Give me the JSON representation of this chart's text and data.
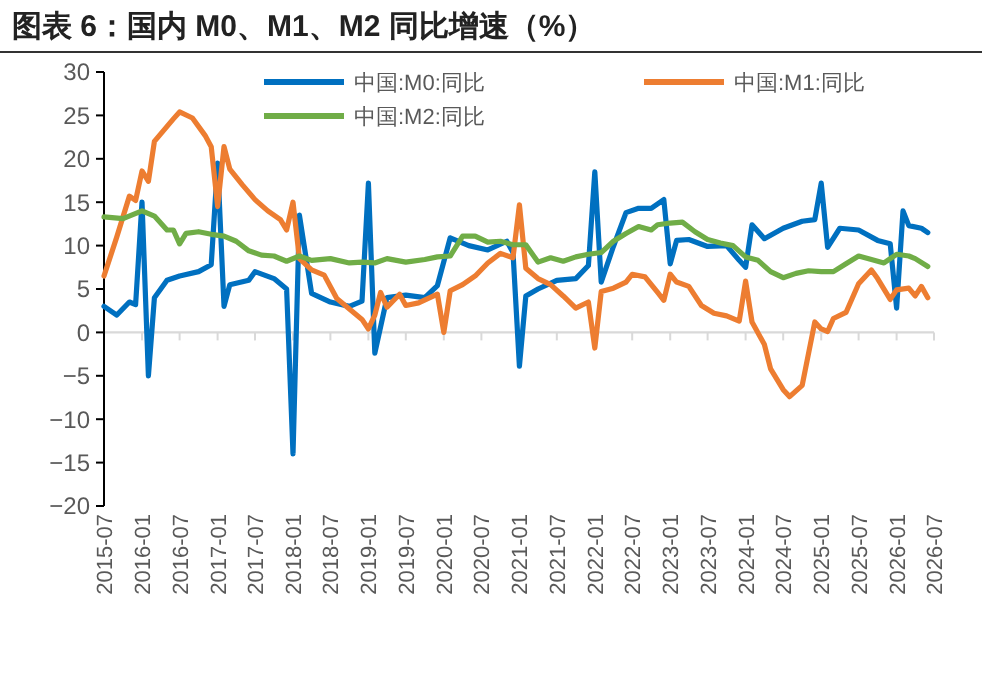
{
  "chart_data": {
    "type": "line",
    "title": "图表 6：国内 M0、M1、M2 同比增速（%）",
    "xlim": [
      "2015-07",
      "2026-07"
    ],
    "xticks": [
      "2015-07",
      "2016-01",
      "2016-07",
      "2017-01",
      "2017-07",
      "2018-01",
      "2018-07",
      "2019-01",
      "2019-07",
      "2020-01",
      "2020-07",
      "2021-01",
      "2021-07",
      "2022-01",
      "2022-07",
      "2023-01",
      "2023-07",
      "2024-01",
      "2024-07",
      "2025-01",
      "2025-07",
      "2026-01",
      "2026-07"
    ],
    "ylim": [
      -20,
      30
    ],
    "yticks": [
      {
        "value": -20,
        "label": "−20"
      },
      {
        "value": -15,
        "label": "−15"
      },
      {
        "value": -10,
        "label": "−10"
      },
      {
        "value": -5,
        "label": "−5"
      },
      0,
      5,
      10,
      15,
      20,
      25,
      30
    ],
    "legend": "top",
    "line_style": "solid",
    "marker": "none",
    "series": [
      {
        "name": "中国:M0:同比",
        "color": "#0070c0",
        "x": [
          "2015-07",
          "2015-09",
          "2015-11",
          "2015-12",
          "2016-01",
          "2016-02",
          "2016-03",
          "2016-05",
          "2016-07",
          "2016-10",
          "2016-12",
          "2017-01",
          "2017-02",
          "2017-03",
          "2017-06",
          "2017-07",
          "2017-10",
          "2017-12",
          "2018-01",
          "2018-02",
          "2018-04",
          "2018-07",
          "2018-10",
          "2018-12",
          "2019-01",
          "2019-02",
          "2019-04",
          "2019-07",
          "2019-10",
          "2019-12",
          "2020-02",
          "2020-05",
          "2020-08",
          "2020-11",
          "2020-12",
          "2021-01",
          "2021-02",
          "2021-04",
          "2021-07",
          "2021-10",
          "2021-12",
          "2022-01",
          "2022-02",
          "2022-04",
          "2022-06",
          "2022-08",
          "2022-10",
          "2022-12",
          "2023-01",
          "2023-02",
          "2023-04",
          "2023-07",
          "2023-10",
          "2023-12",
          "2024-01",
          "2024-02",
          "2024-04",
          "2024-07",
          "2024-10",
          "2024-12",
          "2025-01",
          "2025-02",
          "2025-04",
          "2025-07",
          "2025-10",
          "2025-12",
          "2026-01",
          "2026-02",
          "2026-03",
          "2026-05",
          "2026-06"
        ],
        "values": [
          3,
          2,
          3.5,
          3.2,
          15,
          -5,
          4,
          6,
          6.5,
          7,
          7.8,
          19.5,
          3,
          5.5,
          6,
          7,
          6.2,
          5,
          -14,
          13.5,
          4.5,
          3.5,
          3,
          3.6,
          17.2,
          -2.4,
          4,
          4.3,
          4,
          5.4,
          10.9,
          10,
          9.5,
          10.5,
          9.2,
          -3.9,
          4.2,
          5,
          6,
          6.2,
          7.7,
          18.5,
          5.8,
          9.9,
          13.8,
          14.3,
          14.3,
          15.3,
          7.9,
          10.6,
          10.7,
          9.9,
          10,
          8.3,
          7.5,
          12.4,
          10.8,
          12,
          12.8,
          13,
          17.2,
          9.8,
          12,
          11.8,
          10.6,
          10.2,
          2.8,
          14,
          12.3,
          12,
          11.5
        ]
      },
      {
        "name": "中国:M1:同比",
        "color": "#ed7d31",
        "x": [
          "2015-07",
          "2015-09",
          "2015-11",
          "2015-12",
          "2016-01",
          "2016-02",
          "2016-03",
          "2016-06",
          "2016-07",
          "2016-09",
          "2016-11",
          "2016-12",
          "2017-01",
          "2017-02",
          "2017-03",
          "2017-05",
          "2017-07",
          "2017-09",
          "2017-11",
          "2017-12",
          "2018-01",
          "2018-02",
          "2018-04",
          "2018-06",
          "2018-08",
          "2018-10",
          "2018-12",
          "2019-01",
          "2019-02",
          "2019-03",
          "2019-04",
          "2019-06",
          "2019-07",
          "2019-09",
          "2019-12",
          "2020-01",
          "2020-02",
          "2020-04",
          "2020-06",
          "2020-08",
          "2020-10",
          "2020-12",
          "2021-01",
          "2021-02",
          "2021-04",
          "2021-06",
          "2021-08",
          "2021-10",
          "2021-12",
          "2022-01",
          "2022-02",
          "2022-04",
          "2022-06",
          "2022-07",
          "2022-09",
          "2022-11",
          "2022-12",
          "2023-01",
          "2023-02",
          "2023-04",
          "2023-06",
          "2023-08",
          "2023-10",
          "2023-12",
          "2024-01",
          "2024-02",
          "2024-04",
          "2024-05",
          "2024-07",
          "2024-08",
          "2024-10",
          "2024-12",
          "2025-01",
          "2025-02",
          "2025-03",
          "2025-05",
          "2025-07",
          "2025-09",
          "2025-10",
          "2025-12",
          "2026-01",
          "2026-03",
          "2026-04",
          "2026-05",
          "2026-06"
        ],
        "values": [
          6.5,
          11,
          15.7,
          15.2,
          18.6,
          17.4,
          22,
          24.6,
          25.4,
          24.7,
          22.7,
          21.4,
          14.5,
          21.4,
          18.8,
          17,
          15.3,
          14,
          13,
          11.8,
          15,
          8.5,
          7.2,
          6.6,
          3.9,
          2.7,
          1.5,
          0.4,
          2,
          4.6,
          2.9,
          4.4,
          3.1,
          3.4,
          4.4,
          0,
          4.8,
          5.5,
          6.5,
          8,
          9.1,
          8.6,
          14.7,
          7.4,
          6.2,
          5.5,
          4.2,
          2.8,
          3.5,
          -1.8,
          4.7,
          5.1,
          5.8,
          6.7,
          6.4,
          4.6,
          3.7,
          6.7,
          5.8,
          5.3,
          3.1,
          2.2,
          1.9,
          1.3,
          5.9,
          1.2,
          -1.4,
          -4.2,
          -6.6,
          -7.4,
          -6.1,
          1.2,
          0.4,
          0.1,
          1.6,
          2.3,
          5.6,
          7.2,
          6.2,
          3.8,
          4.9,
          5.1,
          4.2,
          5.3,
          4
        ]
      },
      {
        "name": "中国:M2:同比",
        "color": "#70ad47",
        "x": [
          "2015-07",
          "2015-10",
          "2016-01",
          "2016-03",
          "2016-05",
          "2016-06",
          "2016-07",
          "2016-08",
          "2016-10",
          "2016-12",
          "2017-02",
          "2017-04",
          "2017-06",
          "2017-08",
          "2017-10",
          "2017-12",
          "2018-02",
          "2018-04",
          "2018-07",
          "2018-10",
          "2018-12",
          "2019-02",
          "2019-04",
          "2019-07",
          "2019-10",
          "2019-12",
          "2020-02",
          "2020-04",
          "2020-06",
          "2020-08",
          "2020-10",
          "2020-12",
          "2021-02",
          "2021-04",
          "2021-06",
          "2021-08",
          "2021-10",
          "2021-12",
          "2022-02",
          "2022-04",
          "2022-06",
          "2022-08",
          "2022-10",
          "2022-11",
          "2023-01",
          "2023-03",
          "2023-05",
          "2023-07",
          "2023-09",
          "2023-11",
          "2024-01",
          "2024-03",
          "2024-05",
          "2024-07",
          "2024-09",
          "2024-11",
          "2025-01",
          "2025-03",
          "2025-05",
          "2025-07",
          "2025-09",
          "2025-11",
          "2026-01",
          "2026-03",
          "2026-04",
          "2026-06"
        ],
        "values": [
          13.3,
          13.1,
          14,
          13.4,
          11.8,
          11.8,
          10.2,
          11.4,
          11.6,
          11.3,
          11.1,
          10.5,
          9.4,
          8.9,
          8.8,
          8.2,
          8.8,
          8.3,
          8.5,
          8,
          8.1,
          8,
          8.5,
          8.1,
          8.4,
          8.7,
          8.8,
          11.1,
          11.1,
          10.4,
          10.5,
          10.1,
          10.1,
          8.1,
          8.6,
          8.2,
          8.7,
          9,
          9.2,
          10.5,
          11.4,
          12.2,
          11.8,
          12.4,
          12.6,
          12.7,
          11.6,
          10.7,
          10.3,
          10,
          8.7,
          8.3,
          7,
          6.3,
          6.8,
          7.1,
          7,
          7,
          7.9,
          8.8,
          8.4,
          8,
          9,
          8.8,
          8.5,
          7.6
        ]
      }
    ]
  }
}
